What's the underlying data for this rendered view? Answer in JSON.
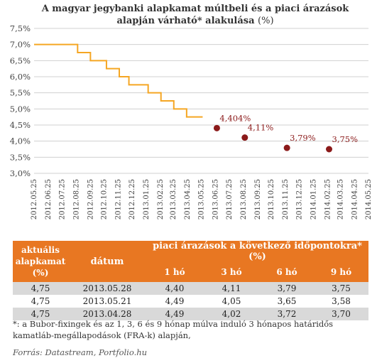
{
  "chart_data": {
    "type": "line",
    "title": "A magyar jegybanki alapkamat múltbeli és a piaci árazások alapján várható* alakulása",
    "title_unit": "(%)",
    "xlabel": "",
    "ylabel": "",
    "ylim": [
      3.0,
      7.5
    ],
    "yticks": [
      "3,0%",
      "3,5%",
      "4,0%",
      "4,5%",
      "5,0%",
      "5,5%",
      "6,0%",
      "6,5%",
      "7,0%",
      "7,5%"
    ],
    "x_labels": [
      "2012.05.25",
      "2012.06.25",
      "2012.07.25",
      "2012.08.25",
      "2012.09.25",
      "2012.10.25",
      "2012.11.25",
      "2012.12.25",
      "2013.01.25",
      "2013.02.25",
      "2013.03.25",
      "2013.04.25",
      "2013.05.25",
      "2013.06.25",
      "2013.07.25",
      "2013.08.25",
      "2013.09.25",
      "2013.10.25",
      "2013.11.25",
      "2013.12.25",
      "2014.01.25",
      "2014.02.25",
      "2014.03.25",
      "2014.04.25",
      "2014.05.25"
    ],
    "grid": true,
    "series": [
      {
        "type": "step-line",
        "color": "#f5a623",
        "points": [
          {
            "x": "2012.05.25",
            "y": 7.0
          },
          {
            "x": "2012.08.28",
            "y": 6.75
          },
          {
            "x": "2012.09.25",
            "y": 6.5
          },
          {
            "x": "2012.10.30",
            "y": 6.25
          },
          {
            "x": "2012.11.27",
            "y": 6.0
          },
          {
            "x": "2012.12.18",
            "y": 5.75
          },
          {
            "x": "2013.01.29",
            "y": 5.5
          },
          {
            "x": "2013.02.26",
            "y": 5.25
          },
          {
            "x": "2013.03.26",
            "y": 5.0
          },
          {
            "x": "2013.04.23",
            "y": 4.75
          },
          {
            "x": "2013.05.28",
            "y": 4.75
          }
        ]
      },
      {
        "type": "scatter",
        "color": "#8b1a1a",
        "points": [
          {
            "x": "2013.06.28",
            "y": 4.404,
            "label": "4,404%"
          },
          {
            "x": "2013.08.28",
            "y": 4.11,
            "label": "4,11%"
          },
          {
            "x": "2013.11.28",
            "y": 3.79,
            "label": "3,79%"
          },
          {
            "x": "2014.02.28",
            "y": 3.75,
            "label": "3,75%"
          }
        ]
      }
    ]
  },
  "table": {
    "headers": {
      "current_rate": "aktuális alapkamat (%)",
      "date": "dátum",
      "group": "piaci árazások a következő időpontokra* (%)",
      "periods": [
        "1 hó",
        "3 hó",
        "6 hó",
        "9 hó"
      ]
    },
    "rows": [
      {
        "rate": "4,75",
        "date": "2013.05.28",
        "values": [
          "4,40",
          "4,11",
          "3,79",
          "3,75"
        ]
      },
      {
        "rate": "4,75",
        "date": "2013.05.21",
        "values": [
          "4,49",
          "4,05",
          "3,65",
          "3,58"
        ]
      },
      {
        "rate": "4,75",
        "date": "2013.04.28",
        "values": [
          "4,49",
          "4,02",
          "3,72",
          "3,70"
        ]
      }
    ]
  },
  "footnote": "*: a Bubor-fixingek és az 1, 3, 6 és 9 hónap múlva induló 3 hónapos határidős kamatláb-megállapodások (FRA-k) alapján,",
  "source": "Forrás: Datastream, Portfolio.hu",
  "colors": {
    "step_line": "#f5a623",
    "points": "#8b1a1a",
    "table_header": "#e87722",
    "row_shade": "#d9d9d9",
    "grid": "#d0d0d0"
  }
}
